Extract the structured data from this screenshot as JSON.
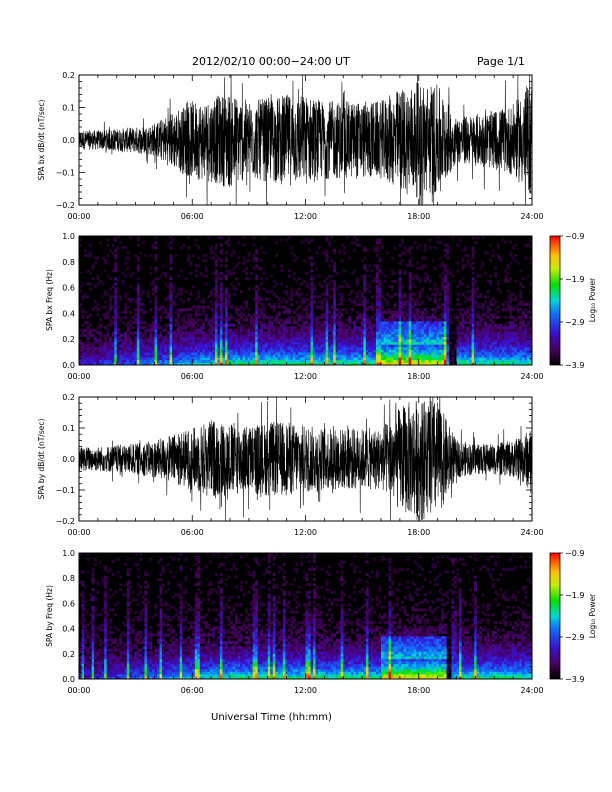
{
  "header": {
    "title": "2012/02/10   00:00−24:00 UT",
    "page": "Page 1/1"
  },
  "chart_data": [
    {
      "type": "line",
      "ylabel": "SPA bx dB/dt (nT/sec)",
      "xlim": [
        0,
        24
      ],
      "ylim": [
        -0.2,
        0.2
      ],
      "x_tick_labels": [
        "00:00",
        "06:00",
        "12:00",
        "18:00",
        "24:00"
      ],
      "y_tick_labels": [
        "−0.2",
        "−0.1",
        "0.0",
        "0.1",
        "0.2"
      ],
      "envelope": {
        "hours": [
          0,
          1,
          2,
          3,
          4,
          5,
          6,
          7,
          8,
          9,
          10,
          11,
          12,
          13,
          14,
          15,
          16,
          17,
          18,
          19,
          20,
          21,
          22,
          23,
          24
        ],
        "amplitude": [
          0.03,
          0.03,
          0.035,
          0.04,
          0.05,
          0.09,
          0.12,
          0.13,
          0.15,
          0.12,
          0.13,
          0.14,
          0.14,
          0.12,
          0.12,
          0.12,
          0.12,
          0.16,
          0.18,
          0.17,
          0.07,
          0.08,
          0.09,
          0.11,
          0.18
        ]
      }
    },
    {
      "type": "heatmap",
      "ylabel": "SPA bx Freq (Hz)",
      "xlim": [
        0,
        24
      ],
      "ylim": [
        0,
        1
      ],
      "x_tick_labels": [
        "00:00",
        "06:00",
        "12:00",
        "18:00",
        "24:00"
      ],
      "y_tick_labels": [
        "0.0",
        "0.2",
        "0.4",
        "0.6",
        "0.8",
        "1.0"
      ],
      "colorbar": {
        "label": "Log₁₀ Power",
        "range": [
          -3.9,
          -0.9
        ],
        "tick_labels": [
          "−0.9",
          "−1.9",
          "−2.9",
          "−3.9"
        ]
      }
    },
    {
      "type": "line",
      "ylabel": "SPA by dB/dt (nT/sec)",
      "xlim": [
        0,
        24
      ],
      "ylim": [
        -0.2,
        0.2
      ],
      "x_tick_labels": [
        "00:00",
        "06:00",
        "12:00",
        "18:00",
        "24:00"
      ],
      "y_tick_labels": [
        "−0.2",
        "−0.1",
        "0.0",
        "0.1",
        "0.2"
      ],
      "envelope": {
        "hours": [
          0,
          1,
          2,
          3,
          4,
          5,
          6,
          7,
          8,
          9,
          10,
          11,
          12,
          13,
          14,
          15,
          16,
          17,
          18,
          19,
          20,
          21,
          22,
          23,
          24
        ],
        "amplitude": [
          0.04,
          0.04,
          0.045,
          0.05,
          0.06,
          0.08,
          0.1,
          0.13,
          0.12,
          0.11,
          0.12,
          0.12,
          0.11,
          0.1,
          0.1,
          0.1,
          0.1,
          0.17,
          0.2,
          0.19,
          0.06,
          0.05,
          0.05,
          0.06,
          0.1
        ]
      }
    },
    {
      "type": "heatmap",
      "ylabel": "SPA by Freq (Hz)",
      "xlim": [
        0,
        24
      ],
      "ylim": [
        0,
        1
      ],
      "x_tick_labels": [
        "00:00",
        "06:00",
        "12:00",
        "18:00",
        "24:00"
      ],
      "y_tick_labels": [
        "0.0",
        "0.2",
        "0.4",
        "0.6",
        "0.8",
        "1.0"
      ],
      "colorbar": {
        "label": "Log₁₀ Power",
        "range": [
          -3.9,
          -0.9
        ],
        "tick_labels": [
          "−0.9",
          "−1.9",
          "−2.9",
          "−3.9"
        ]
      }
    }
  ],
  "xlabel": "Universal Time (hh:mm)"
}
